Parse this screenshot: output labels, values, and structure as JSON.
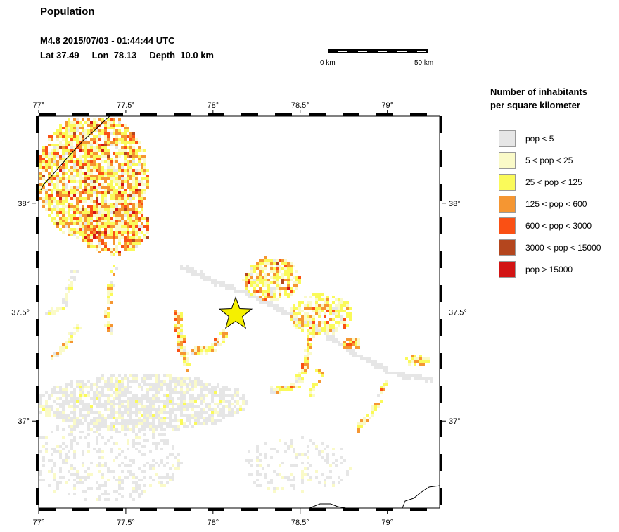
{
  "header": {
    "title": "Population",
    "event": "M4.8  2015/07/03 - 01:44:44 UTC",
    "lat": "Lat 37.49",
    "lon": "Lon  78.13",
    "depth": "Depth  10.0 km"
  },
  "scalebar": {
    "left_label": "0 km",
    "right_label": "50 km"
  },
  "map": {
    "lon_range": [
      77.0,
      79.3
    ],
    "lat_range": [
      36.6,
      38.4
    ],
    "x_ticks": [
      {
        "value": 77.0,
        "label": "77°"
      },
      {
        "value": 77.5,
        "label": "77.5°"
      },
      {
        "value": 78.0,
        "label": "78°"
      },
      {
        "value": 78.5,
        "label": "78.5°"
      },
      {
        "value": 79.0,
        "label": "79°"
      }
    ],
    "y_ticks": [
      {
        "value": 38.0,
        "label": "38°"
      },
      {
        "value": 37.5,
        "label": "37.5°"
      },
      {
        "value": 37.0,
        "label": "37°"
      }
    ],
    "epicenter": {
      "lon": 78.13,
      "lat": 37.49
    },
    "epicenter_color": "#f5f000",
    "frame_color": "#000000"
  },
  "legend": {
    "title_line1": "Number of inhabitants",
    "title_line2": "per square kilometer",
    "items": [
      {
        "label": "pop < 5",
        "color": "#e6e6e6"
      },
      {
        "label": "5 < pop < 25",
        "color": "#fafac8"
      },
      {
        "label": "25 < pop < 125",
        "color": "#fafa5a"
      },
      {
        "label": "125 < pop < 600",
        "color": "#f59632"
      },
      {
        "label": "600 < pop < 3000",
        "color": "#fa5014"
      },
      {
        "label": "3000 < pop < 15000",
        "color": "#b4461e"
      },
      {
        "label": "pop > 15000",
        "color": "#d21414"
      }
    ]
  }
}
